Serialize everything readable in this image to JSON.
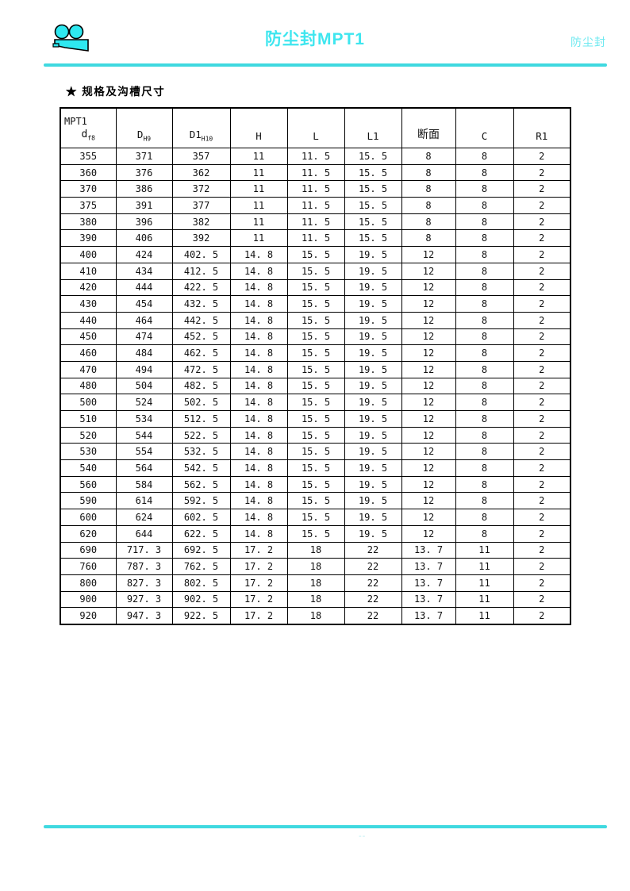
{
  "page": {
    "header": {
      "title": "防尘封MPT1",
      "right_label": "防尘封"
    },
    "section_title": "★ 规格及沟槽尺寸",
    "footer_mark": "--"
  },
  "colors": {
    "accent_cyan": "#3fd9e0",
    "title_cyan": "#3fe6ef",
    "logo_cyan": "#2ee8f0",
    "table_border": "#000000"
  },
  "table": {
    "header": {
      "col1_line1": "MPT1",
      "col1_main": "d",
      "col1_sub": "f8",
      "col2_main": "D",
      "col2_sub": "H9",
      "col3_main": "D1",
      "col3_sub": "H10",
      "col4": "H",
      "col5": "L",
      "col6": "L1",
      "col7": "断面",
      "col8": "C",
      "col9": "R1"
    },
    "rows": [
      [
        "355",
        "371",
        "357",
        "11",
        "11. 5",
        "15. 5",
        "8",
        "8",
        "2"
      ],
      [
        "360",
        "376",
        "362",
        "11",
        "11. 5",
        "15. 5",
        "8",
        "8",
        "2"
      ],
      [
        "370",
        "386",
        "372",
        "11",
        "11. 5",
        "15. 5",
        "8",
        "8",
        "2"
      ],
      [
        "375",
        "391",
        "377",
        "11",
        "11. 5",
        "15. 5",
        "8",
        "8",
        "2"
      ],
      [
        "380",
        "396",
        "382",
        "11",
        "11. 5",
        "15. 5",
        "8",
        "8",
        "2"
      ],
      [
        "390",
        "406",
        "392",
        "11",
        "11. 5",
        "15. 5",
        "8",
        "8",
        "2"
      ],
      [
        "400",
        "424",
        "402. 5",
        "14. 8",
        "15. 5",
        "19. 5",
        "12",
        "8",
        "2"
      ],
      [
        "410",
        "434",
        "412. 5",
        "14. 8",
        "15. 5",
        "19. 5",
        "12",
        "8",
        "2"
      ],
      [
        "420",
        "444",
        "422. 5",
        "14. 8",
        "15. 5",
        "19. 5",
        "12",
        "8",
        "2"
      ],
      [
        "430",
        "454",
        "432. 5",
        "14. 8",
        "15. 5",
        "19. 5",
        "12",
        "8",
        "2"
      ],
      [
        "440",
        "464",
        "442. 5",
        "14. 8",
        "15. 5",
        "19. 5",
        "12",
        "8",
        "2"
      ],
      [
        "450",
        "474",
        "452. 5",
        "14. 8",
        "15. 5",
        "19. 5",
        "12",
        "8",
        "2"
      ],
      [
        "460",
        "484",
        "462. 5",
        "14. 8",
        "15. 5",
        "19. 5",
        "12",
        "8",
        "2"
      ],
      [
        "470",
        "494",
        "472. 5",
        "14. 8",
        "15. 5",
        "19. 5",
        "12",
        "8",
        "2"
      ],
      [
        "480",
        "504",
        "482. 5",
        "14. 8",
        "15. 5",
        "19. 5",
        "12",
        "8",
        "2"
      ],
      [
        "500",
        "524",
        "502. 5",
        "14. 8",
        "15. 5",
        "19. 5",
        "12",
        "8",
        "2"
      ],
      [
        "510",
        "534",
        "512. 5",
        "14. 8",
        "15. 5",
        "19. 5",
        "12",
        "8",
        "2"
      ],
      [
        "520",
        "544",
        "522. 5",
        "14. 8",
        "15. 5",
        "19. 5",
        "12",
        "8",
        "2"
      ],
      [
        "530",
        "554",
        "532. 5",
        "14. 8",
        "15. 5",
        "19. 5",
        "12",
        "8",
        "2"
      ],
      [
        "540",
        "564",
        "542. 5",
        "14. 8",
        "15. 5",
        "19. 5",
        "12",
        "8",
        "2"
      ],
      [
        "560",
        "584",
        "562. 5",
        "14. 8",
        "15. 5",
        "19. 5",
        "12",
        "8",
        "2"
      ],
      [
        "590",
        "614",
        "592. 5",
        "14. 8",
        "15. 5",
        "19. 5",
        "12",
        "8",
        "2"
      ],
      [
        "600",
        "624",
        "602. 5",
        "14. 8",
        "15. 5",
        "19. 5",
        "12",
        "8",
        "2"
      ],
      [
        "620",
        "644",
        "622. 5",
        "14. 8",
        "15. 5",
        "19. 5",
        "12",
        "8",
        "2"
      ],
      [
        "690",
        "717. 3",
        "692. 5",
        "17. 2",
        "18",
        "22",
        "13. 7",
        "11",
        "2"
      ],
      [
        "760",
        "787. 3",
        "762. 5",
        "17. 2",
        "18",
        "22",
        "13. 7",
        "11",
        "2"
      ],
      [
        "800",
        "827. 3",
        "802. 5",
        "17. 2",
        "18",
        "22",
        "13. 7",
        "11",
        "2"
      ],
      [
        "900",
        "927. 3",
        "902. 5",
        "17. 2",
        "18",
        "22",
        "13. 7",
        "11",
        "2"
      ],
      [
        "920",
        "947. 3",
        "922. 5",
        "17. 2",
        "18",
        "22",
        "13. 7",
        "11",
        "2"
      ]
    ]
  }
}
